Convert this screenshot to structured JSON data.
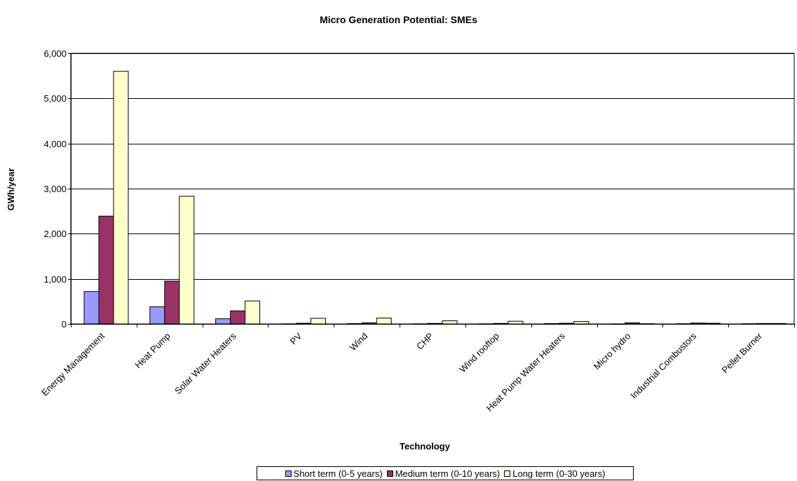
{
  "chart_data": {
    "type": "bar",
    "title": "Micro Generation Potential: SMEs",
    "xlabel": "Technology",
    "ylabel": "GWh/year",
    "ylim": [
      0,
      6000
    ],
    "yticks": [
      0,
      1000,
      2000,
      3000,
      4000,
      5000,
      6000
    ],
    "ytick_labels": [
      "0",
      "1,000",
      "2,000",
      "3,000",
      "4,000",
      "5,000",
      "6,000"
    ],
    "grid": true,
    "legend_position": "bottom",
    "categories": [
      "Energy Management",
      "Heat Pump",
      "Solar Water Heaters",
      "PV",
      "Wind",
      "CHP",
      "Wind rooftop",
      "Heat Pump Water Heaters",
      "Micro hydro",
      "Industrial Combustors",
      "Pellet Burner"
    ],
    "series": [
      {
        "name": "Short term (0-5 years)",
        "color": "#9999ff",
        "values": [
          720,
          380,
          115,
          3,
          8,
          3,
          3,
          8,
          2,
          5,
          5
        ]
      },
      {
        "name": "Medium term (0-10 years)",
        "color": "#993366",
        "values": [
          2390,
          950,
          290,
          15,
          25,
          12,
          12,
          15,
          25,
          20,
          10
        ]
      },
      {
        "name": "Long term (0-30 years)",
        "color": "#ffffcc",
        "values": [
          5600,
          2830,
          510,
          125,
          130,
          70,
          60,
          55,
          5,
          15,
          10
        ]
      }
    ]
  }
}
